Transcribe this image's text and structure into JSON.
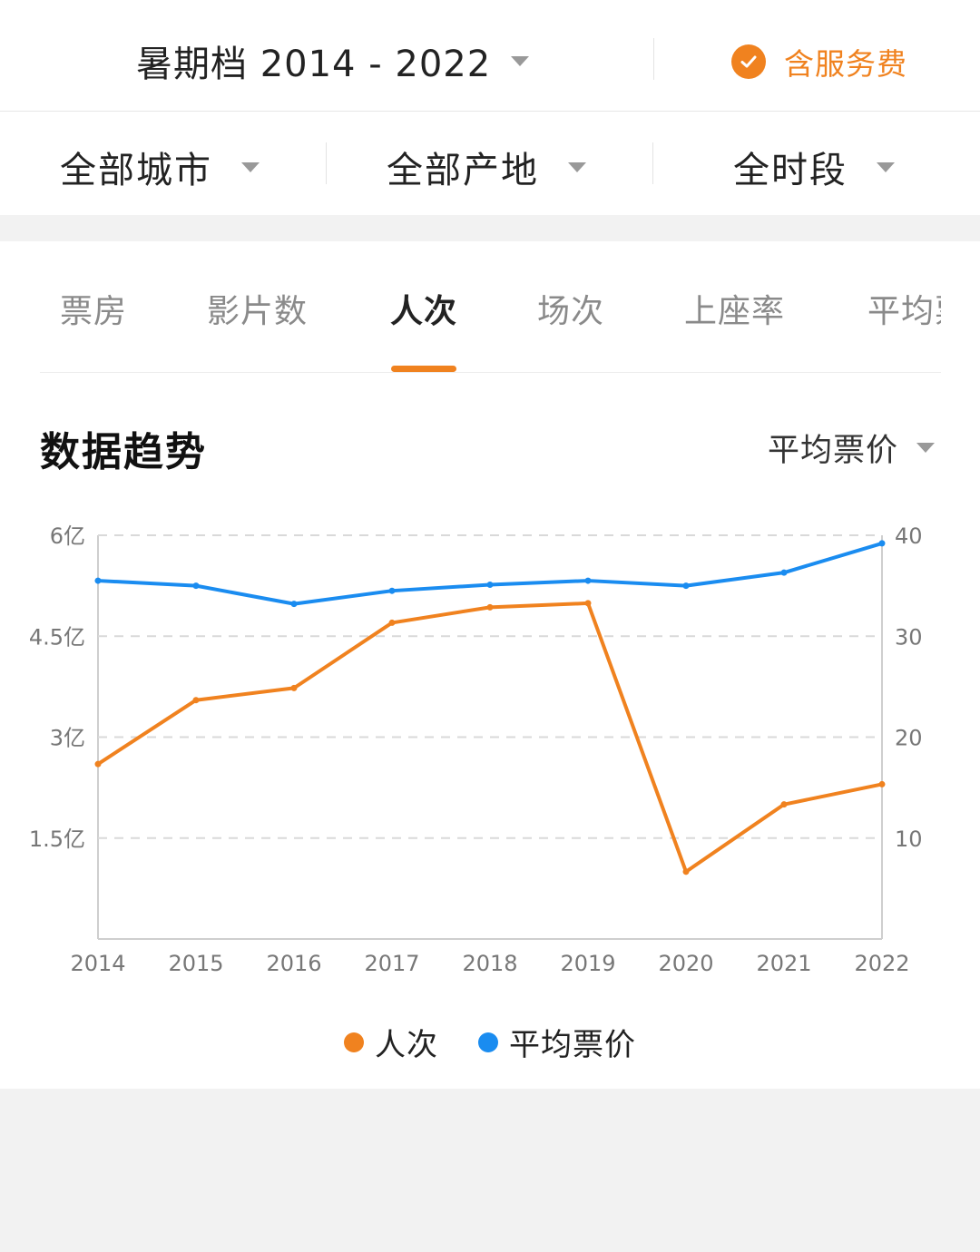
{
  "header": {
    "season_label": "暑期档 2014 - 2022",
    "service_fee_label": "含服务费"
  },
  "filters": {
    "city": "全部城市",
    "origin": "全部产地",
    "time": "全时段"
  },
  "tabs": [
    {
      "label": "票房"
    },
    {
      "label": "影片数"
    },
    {
      "label": "人次",
      "active": true
    },
    {
      "label": "场次"
    },
    {
      "label": "上座率"
    },
    {
      "label": "平均票价"
    }
  ],
  "section": {
    "title": "数据趋势",
    "metric_select": "平均票价"
  },
  "colors": {
    "accent": "#f0821f",
    "series_blue": "#1a8cf0",
    "grid": "#d9d9d9"
  },
  "chart_data": {
    "type": "line",
    "x": [
      "2014",
      "2015",
      "2016",
      "2017",
      "2018",
      "2019",
      "2020",
      "2021",
      "2022"
    ],
    "series": [
      {
        "name": "人次",
        "axis": "left",
        "color": "#f0821f",
        "values": [
          2.6,
          3.55,
          3.73,
          4.7,
          4.93,
          4.99,
          1.0,
          2.0,
          2.3
        ]
      },
      {
        "name": "平均票价",
        "axis": "right",
        "color": "#1a8cf0",
        "values": [
          35.5,
          35.0,
          33.2,
          34.5,
          35.1,
          35.5,
          35.0,
          36.3,
          39.2
        ]
      }
    ],
    "y_left": {
      "ticks": [
        {
          "v": 1.5,
          "label": "1.5亿"
        },
        {
          "v": 3,
          "label": "3亿"
        },
        {
          "v": 4.5,
          "label": "4.5亿"
        },
        {
          "v": 6,
          "label": "6亿"
        }
      ],
      "range": [
        0,
        6
      ]
    },
    "y_right": {
      "ticks": [
        {
          "v": 10,
          "label": "10"
        },
        {
          "v": 20,
          "label": "20"
        },
        {
          "v": 30,
          "label": "30"
        },
        {
          "v": 40,
          "label": "40"
        }
      ],
      "range": [
        0,
        40
      ]
    },
    "grid": true,
    "legend_position": "bottom-center"
  }
}
